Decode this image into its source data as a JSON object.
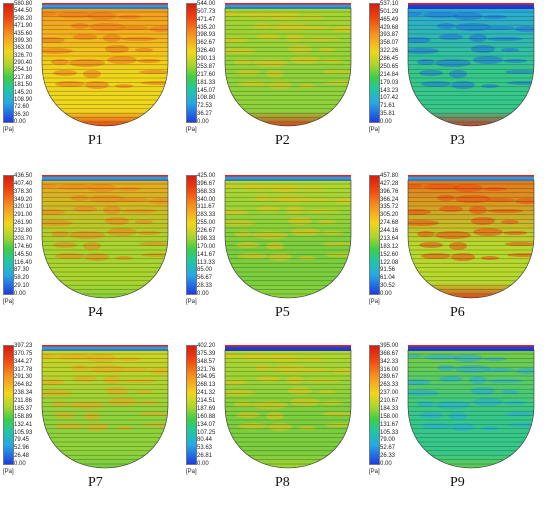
{
  "unit_label": "[Pa]",
  "panels": [
    {
      "label": "P1",
      "ticks": [
        "580.80",
        "544.50",
        "508.20",
        "471.90",
        "435.60",
        "399.30",
        "363.00",
        "326.70",
        "290.40",
        "254.10",
        "217.80",
        "181.50",
        "145.20",
        "108.90",
        "72.60",
        "36.30",
        "0.00"
      ]
    },
    {
      "label": "P2",
      "ticks": [
        "544.00",
        "507.73",
        "471.47",
        "435.20",
        "398.93",
        "362.67",
        "326.40",
        "290.13",
        "253.87",
        "217.60",
        "181.33",
        "145.07",
        "108.80",
        "72.53",
        "36.27",
        "0.00"
      ]
    },
    {
      "label": "P3",
      "ticks": [
        "537.10",
        "501.29",
        "465.49",
        "429.68",
        "393.87",
        "358.07",
        "322.26",
        "286.45",
        "250.65",
        "214.84",
        "179.03",
        "143.23",
        "107.42",
        "71.61",
        "35.81",
        "0.00"
      ]
    },
    {
      "label": "P4",
      "ticks": [
        "436.50",
        "407.40",
        "378.30",
        "349.20",
        "320.10",
        "291.00",
        "261.90",
        "232.80",
        "203.70",
        "174.60",
        "145.50",
        "116.40",
        "87.30",
        "58.20",
        "29.10",
        "0.00"
      ]
    },
    {
      "label": "P5",
      "ticks": [
        "425.00",
        "396.67",
        "368.33",
        "340.00",
        "311.67",
        "283.33",
        "255.00",
        "226.67",
        "198.33",
        "170.00",
        "141.67",
        "113.33",
        "85.00",
        "56.67",
        "28.33",
        "0.00"
      ]
    },
    {
      "label": "P6",
      "ticks": [
        "457.80",
        "427.28",
        "396.76",
        "366.24",
        "335.72",
        "305.20",
        "274.68",
        "244.16",
        "213.64",
        "183.12",
        "152.60",
        "122.08",
        "91.56",
        "61.04",
        "30.52",
        "0.00"
      ]
    },
    {
      "label": "P7",
      "ticks": [
        "397.23",
        "370.75",
        "344.27",
        "317.78",
        "291.30",
        "264.82",
        "238.34",
        "211.86",
        "185.37",
        "158.89",
        "132.41",
        "105.93",
        "79.45",
        "52.96",
        "26.48",
        "0.00"
      ]
    },
    {
      "label": "P8",
      "ticks": [
        "402.20",
        "375.39",
        "348.57",
        "321.76",
        "294.95",
        "268.13",
        "241.32",
        "214.51",
        "187.69",
        "160.88",
        "134.07",
        "107.25",
        "80.44",
        "53.63",
        "26.81",
        "0.00"
      ]
    },
    {
      "label": "P9",
      "ticks": [
        "395.00",
        "368.67",
        "342.33",
        "316.00",
        "289.67",
        "263.33",
        "237.00",
        "210.67",
        "184.33",
        "158.00",
        "131.67",
        "105.33",
        "79.00",
        "52.67",
        "26.33",
        "0.00"
      ]
    }
  ],
  "fields": [
    {
      "top": "#f7941d",
      "mid": "#f2d61a",
      "bottom": "#e8211a",
      "streaks": "#ef6f1a",
      "rim": "#2c9be6"
    },
    {
      "top": "#a9d52c",
      "mid": "#8fd33a",
      "bottom": "#e8211a",
      "streaks": "#e6c21c",
      "rim": "#2c9be6"
    },
    {
      "top": "#28a7e0",
      "mid": "#34c98a",
      "bottom": "#e8211a",
      "streaks": "#1e6fe0",
      "rim": "#1d3de2"
    },
    {
      "top": "#f2a41d",
      "mid": "#a9d52c",
      "bottom": "#7ccf3c",
      "streaks": "#f27f1a",
      "rim": "#2c9be6"
    },
    {
      "top": "#b9d82c",
      "mid": "#7ccf3c",
      "bottom": "#8fd33a",
      "streaks": "#e6c21c",
      "rim": "#2c9be6"
    },
    {
      "top": "#ef6f1a",
      "mid": "#b9d82c",
      "bottom": "#e8211a",
      "streaks": "#f2450f",
      "rim": "#2c9be6"
    },
    {
      "top": "#d9d41f",
      "mid": "#8fd33a",
      "bottom": "#6fcd3e",
      "streaks": "#f2a41d",
      "rim": "#2c9be6"
    },
    {
      "top": "#b9d82c",
      "mid": "#7ccf3c",
      "bottom": "#a9d52c",
      "streaks": "#e6c21c",
      "rim": "#1d3de2"
    },
    {
      "top": "#7ccf3c",
      "mid": "#34c98a",
      "bottom": "#6fcd3e",
      "streaks": "#25a8e6",
      "rim": "#1d3de2"
    }
  ]
}
